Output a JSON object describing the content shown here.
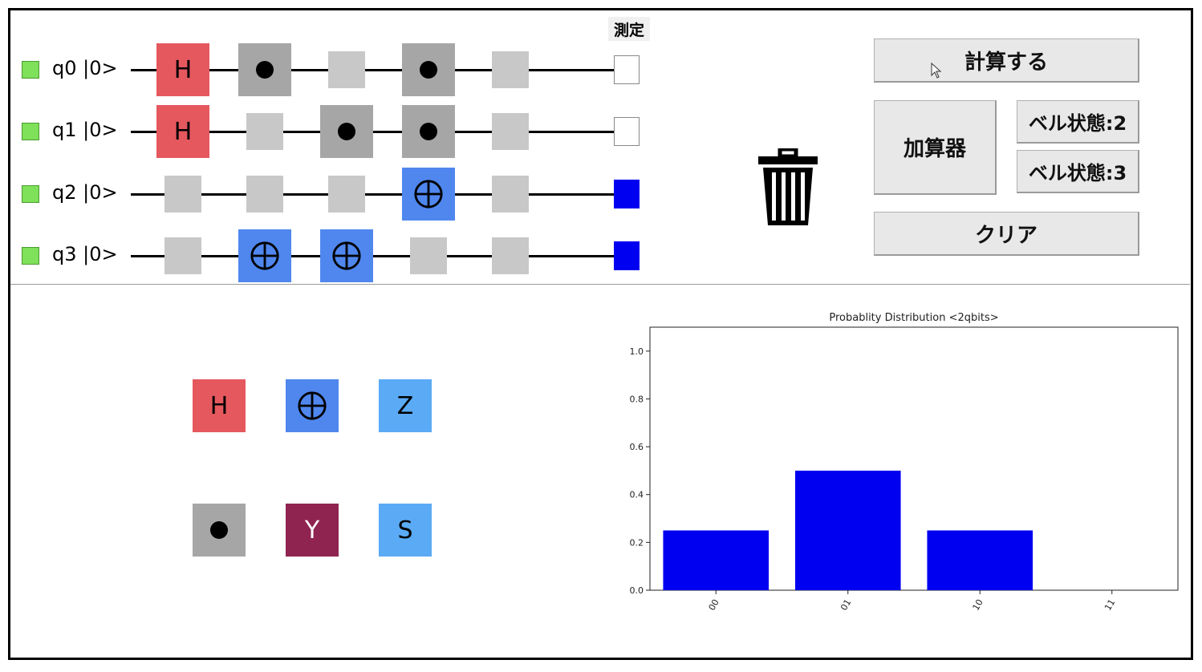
{
  "circuit": {
    "measure_header": "測定",
    "qubits": [
      {
        "label": "q0 |0>",
        "gates": [
          "H",
          "ctrl",
          "empty",
          "ctrl",
          "empty"
        ],
        "measured": false
      },
      {
        "label": "q1 |0>",
        "gates": [
          "H",
          "empty",
          "ctrl",
          "ctrl",
          "empty"
        ],
        "measured": false
      },
      {
        "label": "q2 |0>",
        "gates": [
          "empty",
          "empty",
          "empty",
          "X",
          "empty"
        ],
        "measured": true
      },
      {
        "label": "q3 |0>",
        "gates": [
          "empty",
          "X",
          "X",
          "empty",
          "empty"
        ],
        "measured": true
      }
    ]
  },
  "buttons": {
    "compute": "計算する",
    "adder": "加算器",
    "bell2": "ベル状態:2",
    "bell3": "ベル状態:3",
    "clear": "クリア"
  },
  "icons": {
    "trash": "trash-icon",
    "cursor": "mouse-cursor-icon",
    "control_dot": "control-dot-icon",
    "cnot_target": "circled-plus-icon"
  },
  "palette": {
    "title": "",
    "items": [
      {
        "type": "H",
        "label": "H"
      },
      {
        "type": "X",
        "label": ""
      },
      {
        "type": "Z",
        "label": "Z"
      },
      {
        "type": "ctrl",
        "label": ""
      },
      {
        "type": "Y",
        "label": "Y"
      },
      {
        "type": "S",
        "label": "S"
      }
    ]
  },
  "colors": {
    "h_gate": "#e5585e",
    "control_gate": "#a6a6a6",
    "x_gate": "#4f87ee",
    "empty_slot": "#c8c8c8",
    "z_s_gate": "#5aaaf5",
    "y_gate": "#8f2450",
    "qubit_indicator": "#7fe05a",
    "bar": "#0000f0"
  },
  "chart_data": {
    "type": "bar",
    "title": "Probablity Distribution <2qbits>",
    "categories": [
      "00",
      "01",
      "10",
      "11"
    ],
    "values": [
      0.25,
      0.5,
      0.25,
      0.0
    ],
    "ylim": [
      0,
      1.1
    ],
    "yticks": [
      "0.0",
      "0.2",
      "0.4",
      "0.6",
      "0.8",
      "1.0"
    ],
    "xlabel": "",
    "ylabel": "",
    "grid": false
  }
}
